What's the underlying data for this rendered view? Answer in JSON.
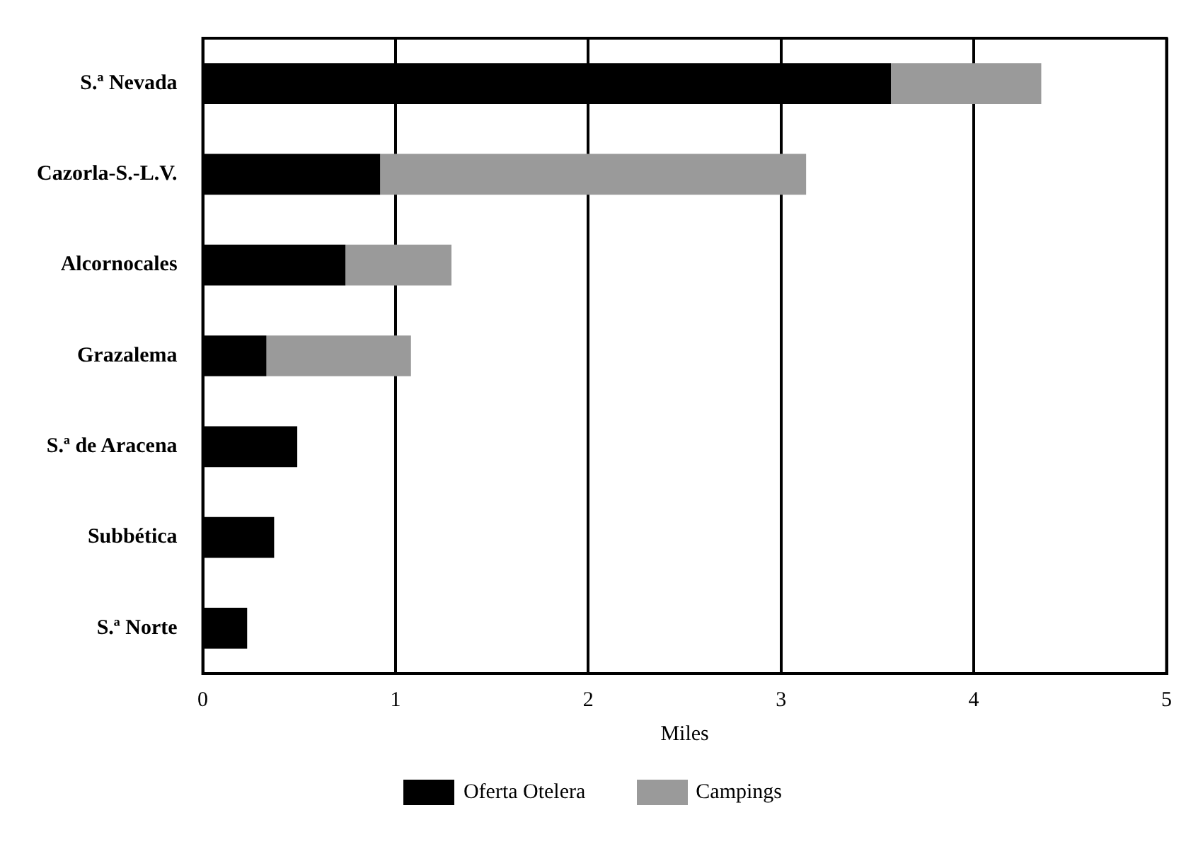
{
  "chart_data": {
    "type": "bar",
    "orientation": "horizontal",
    "stacked": true,
    "xlabel": "Miles",
    "categories": [
      "S.ª Nevada",
      "Cazorla-S.-L.V.",
      "Alcornocales",
      "Grazalema",
      "S.ª de Aracena",
      "Subbética",
      "S.ª Norte"
    ],
    "series": [
      {
        "name": "Oferta Otelera",
        "color": "#000000",
        "values": [
          3.57,
          0.92,
          0.74,
          0.33,
          0.49,
          0.37,
          0.23
        ]
      },
      {
        "name": "Campings",
        "color": "#9a9a9a",
        "values": [
          0.78,
          2.21,
          0.55,
          0.75,
          null,
          null,
          null
        ]
      }
    ],
    "xlim": [
      0,
      5
    ],
    "xticks": [
      0,
      1,
      2,
      3,
      4,
      5
    ],
    "grid": "x",
    "legend": "bottom"
  }
}
